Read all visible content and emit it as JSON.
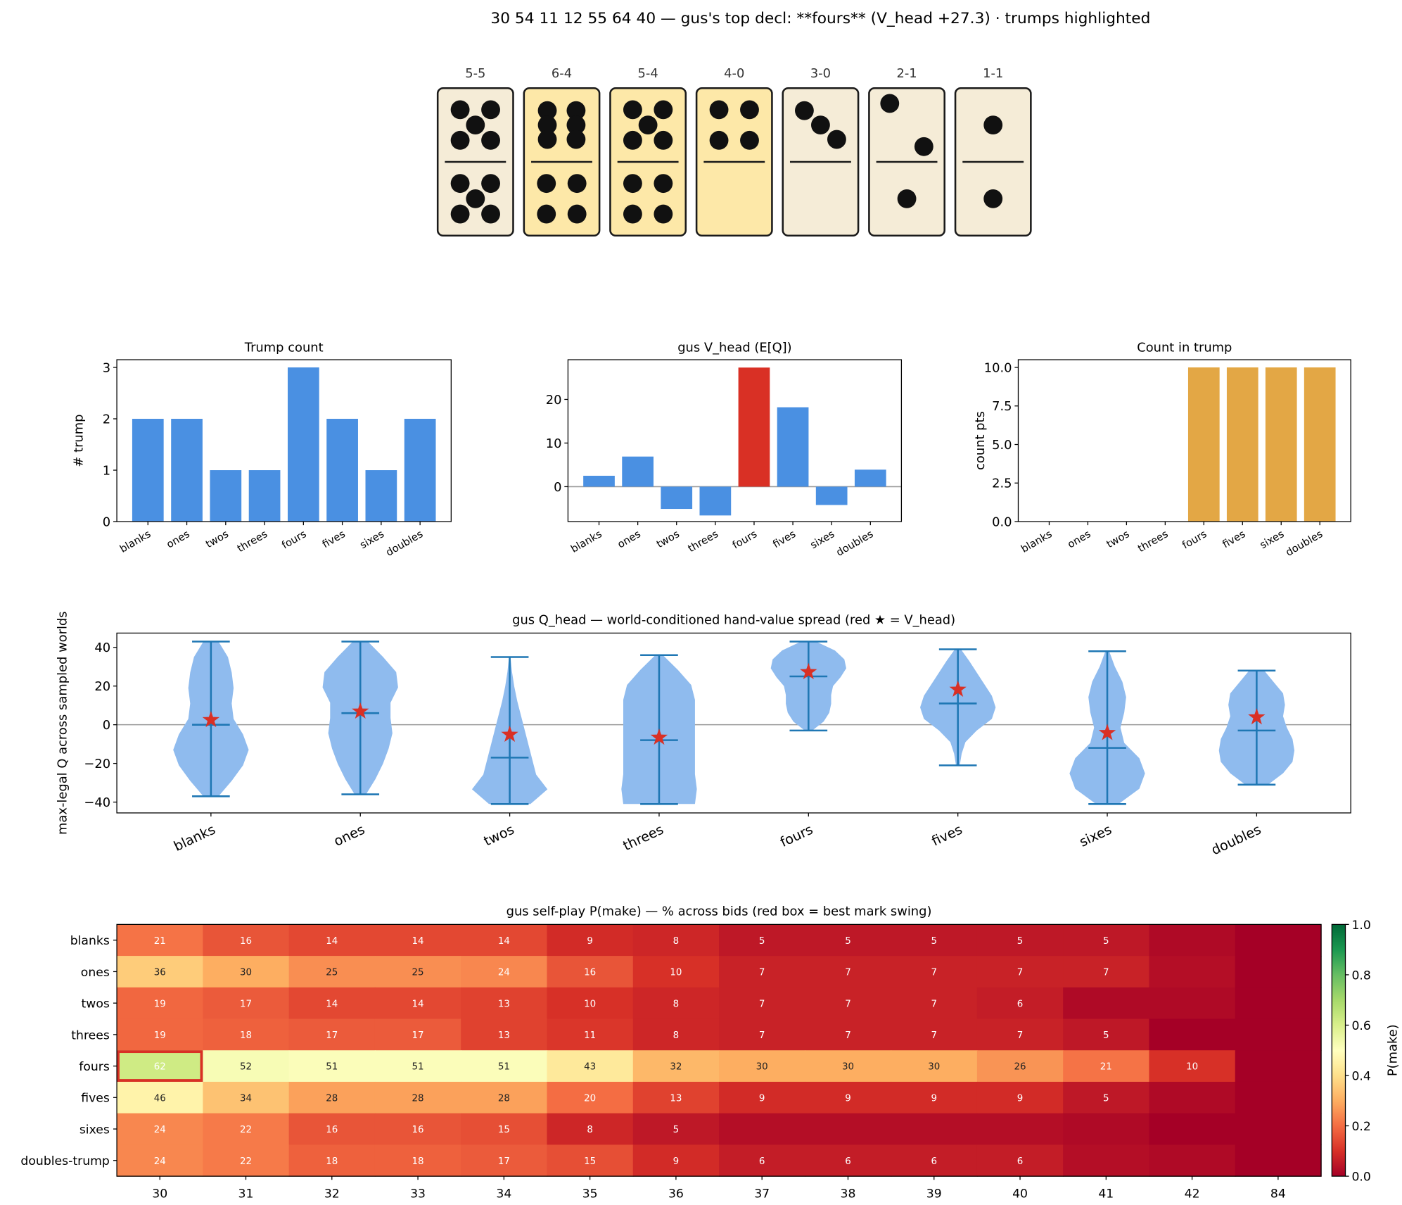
{
  "title": "30 54 11 12 55 64 40  —  gus's top decl: **fours**  (V_head +27.3)   · trumps highlighted",
  "colors": {
    "domino_plain": "#f5ecd7",
    "domino_trump": "#fde8a8",
    "bar_blue": "#4a90e2",
    "bar_red": "#d93025",
    "bar_orange": "#e3a745",
    "violin": "#8fbbee",
    "violin_line": "#1f77b4",
    "star": "#d93025"
  },
  "dominoes": [
    {
      "label": "5-5",
      "top": 5,
      "bottom": 5,
      "trump": false
    },
    {
      "label": "6-4",
      "top": 6,
      "bottom": 4,
      "trump": true
    },
    {
      "label": "5-4",
      "top": 5,
      "bottom": 4,
      "trump": true
    },
    {
      "label": "4-0",
      "top": 4,
      "bottom": 0,
      "trump": true
    },
    {
      "label": "3-0",
      "top": 3,
      "bottom": 0,
      "trump": false
    },
    {
      "label": "2-1",
      "top": 2,
      "bottom": 1,
      "trump": false
    },
    {
      "label": "1-1",
      "top": 1,
      "bottom": 1,
      "trump": false
    }
  ],
  "chart_data": [
    {
      "type": "bar",
      "title": "Trump count",
      "ylabel": "# trump",
      "categories": [
        "blanks",
        "ones",
        "twos",
        "threes",
        "fours",
        "fives",
        "sixes",
        "doubles"
      ],
      "values": [
        2,
        2,
        1,
        1,
        3,
        2,
        1,
        2
      ],
      "ylim": [
        0,
        3.15
      ],
      "yticks": [
        0,
        1,
        2,
        3
      ],
      "ytick_labels": [
        "0",
        "1",
        "2",
        "3"
      ],
      "bar_colors": [
        "#4a90e2",
        "#4a90e2",
        "#4a90e2",
        "#4a90e2",
        "#4a90e2",
        "#4a90e2",
        "#4a90e2",
        "#4a90e2"
      ],
      "zero_line": false
    },
    {
      "type": "bar",
      "title": "gus V_head (E[Q])",
      "ylabel": "",
      "categories": [
        "blanks",
        "ones",
        "twos",
        "threes",
        "fours",
        "fives",
        "sixes",
        "doubles"
      ],
      "values": [
        2.5,
        6.9,
        -5.1,
        -6.6,
        27.3,
        18.2,
        -4.2,
        3.9
      ],
      "ylim": [
        -8,
        29.1
      ],
      "yticks": [
        0,
        10,
        20
      ],
      "ytick_labels": [
        "0",
        "10",
        "20"
      ],
      "bar_colors": [
        "#4a90e2",
        "#4a90e2",
        "#4a90e2",
        "#4a90e2",
        "#d93025",
        "#4a90e2",
        "#4a90e2",
        "#4a90e2"
      ],
      "zero_line": true
    },
    {
      "type": "bar",
      "title": "Count in trump",
      "ylabel": "count pts",
      "categories": [
        "blanks",
        "ones",
        "twos",
        "threes",
        "fours",
        "fives",
        "sixes",
        "doubles"
      ],
      "values": [
        0,
        0,
        0,
        0,
        10,
        10,
        10,
        10
      ],
      "ylim": [
        0,
        10.5
      ],
      "yticks": [
        0,
        2.5,
        5,
        7.5,
        10
      ],
      "ytick_labels": [
        "0.0",
        "2.5",
        "5.0",
        "7.5",
        "10.0"
      ],
      "bar_colors": [
        "#e3a745",
        "#e3a745",
        "#e3a745",
        "#e3a745",
        "#e3a745",
        "#e3a745",
        "#e3a745",
        "#e3a745"
      ],
      "zero_line": false
    },
    {
      "type": "violin",
      "title": "gus Q_head — world-conditioned hand-value spread (red ★ = V_head)",
      "ylabel": "max-legal Q across sampled worlds",
      "categories": [
        "blanks",
        "ones",
        "twos",
        "threes",
        "fours",
        "fives",
        "sixes",
        "doubles"
      ],
      "ylim": [
        -45.6,
        47.4
      ],
      "yticks": [
        -40,
        -20,
        0,
        20,
        40
      ],
      "ytick_labels": [
        "−40",
        "−20",
        "0",
        "20",
        "40"
      ],
      "min": [
        -37,
        -36,
        -41,
        -41,
        -3,
        -21,
        -41,
        -31
      ],
      "max": [
        43,
        43,
        35,
        36,
        43,
        39,
        38,
        28
      ],
      "median": [
        0,
        6,
        -17,
        -8,
        25,
        11,
        -12,
        -3
      ],
      "v_head": [
        2.5,
        6.9,
        -5.1,
        -6.6,
        27.3,
        18.2,
        -4.2,
        3.9
      ],
      "density_bottom_to_top": [
        [
          0.2,
          0.55,
          0.85,
          1.0,
          0.85,
          0.6,
          0.55,
          0.6,
          0.55,
          0.45,
          0.2
        ],
        [
          0.15,
          0.4,
          0.6,
          0.75,
          0.85,
          0.8,
          0.8,
          1.0,
          0.95,
          0.6,
          0.2
        ],
        [
          0.55,
          1.0,
          0.7,
          0.6,
          0.5,
          0.4,
          0.3,
          0.2,
          0.12,
          0.06,
          0.02
        ],
        [
          0.95,
          1.0,
          0.95,
          0.95,
          0.95,
          0.95,
          0.95,
          0.95,
          0.85,
          0.5,
          0.1
        ],
        [
          0.1,
          0.4,
          0.55,
          0.6,
          0.6,
          0.65,
          0.85,
          1.0,
          0.95,
          0.7,
          0.2
        ],
        [
          0.05,
          0.1,
          0.2,
          0.5,
          0.9,
          1.0,
          0.9,
          0.7,
          0.5,
          0.3,
          0.08
        ],
        [
          0.3,
          0.85,
          1.0,
          0.85,
          0.45,
          0.35,
          0.45,
          0.5,
          0.4,
          0.2,
          0.05
        ],
        [
          0.3,
          0.7,
          0.95,
          1.0,
          0.95,
          0.8,
          0.7,
          0.75,
          0.7,
          0.45,
          0.2
        ]
      ],
      "zero_line": true
    },
    {
      "type": "heatmap",
      "title": "gus self-play P(make) — % across bids (red box = best mark swing)",
      "x_categories": [
        "30",
        "31",
        "32",
        "33",
        "34",
        "35",
        "36",
        "37",
        "38",
        "39",
        "40",
        "41",
        "42",
        "84"
      ],
      "y_categories": [
        "blanks",
        "ones",
        "twos",
        "threes",
        "fours",
        "fives",
        "sixes",
        "doubles-trump"
      ],
      "values_pct": [
        [
          21,
          16,
          14,
          14,
          14,
          9,
          8,
          5,
          5,
          5,
          5,
          5,
          2,
          0
        ],
        [
          36,
          30,
          25,
          25,
          24,
          16,
          10,
          7,
          7,
          7,
          7,
          7,
          3,
          0
        ],
        [
          19,
          17,
          14,
          14,
          13,
          10,
          8,
          7,
          7,
          7,
          6,
          2,
          2,
          0
        ],
        [
          19,
          18,
          17,
          17,
          13,
          11,
          8,
          7,
          7,
          7,
          7,
          5,
          0,
          0
        ],
        [
          62,
          52,
          51,
          51,
          51,
          43,
          32,
          30,
          30,
          30,
          26,
          21,
          10,
          0
        ],
        [
          46,
          34,
          28,
          28,
          28,
          20,
          13,
          9,
          9,
          9,
          9,
          5,
          2,
          0
        ],
        [
          24,
          22,
          16,
          16,
          15,
          8,
          5,
          3,
          3,
          3,
          3,
          2,
          0,
          0
        ],
        [
          24,
          22,
          18,
          18,
          17,
          15,
          9,
          6,
          6,
          6,
          6,
          3,
          2,
          0
        ]
      ],
      "label_min_pct": 5,
      "highlight": {
        "row": "fours",
        "col": "30"
      },
      "colormap": "RdYlGn",
      "clim": [
        0,
        1
      ],
      "colorbar_label": "P(make)",
      "colorbar_ticks": [
        "0.0",
        "0.2",
        "0.4",
        "0.6",
        "0.8",
        "1.0"
      ]
    }
  ]
}
